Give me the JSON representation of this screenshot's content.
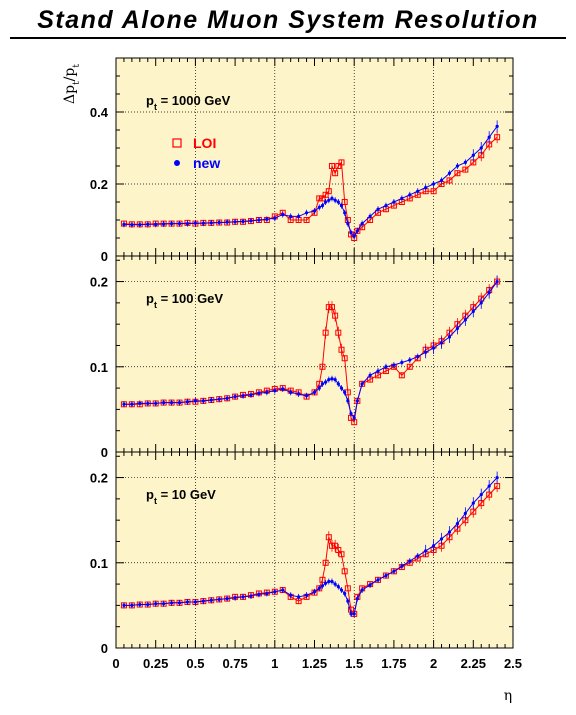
{
  "chart_data": {
    "type": "scatter",
    "title": "Stand Alone Muon System Resolution",
    "xlabel": "η",
    "ylabel": "Δp_t/p_t",
    "xlim": [
      0,
      2.5
    ],
    "x_ticks": [
      "0",
      "0.25",
      "0.5",
      "0.75",
      "1",
      "1.25",
      "1.5",
      "1.75",
      "2",
      "2.25",
      "2.5"
    ],
    "x_tick_values": [
      0,
      0.25,
      0.5,
      0.75,
      1,
      1.25,
      1.5,
      1.75,
      2,
      2.25,
      2.5
    ],
    "background": "#fdf5c9",
    "grid": "dotted",
    "legend": {
      "placement": "top-left (top panel)",
      "entries": [
        {
          "label": "LOI",
          "color": "#ff0000",
          "marker": "open-square"
        },
        {
          "label": "new",
          "color": "#0000ff",
          "marker": "filled-circle"
        }
      ]
    },
    "panels": [
      {
        "label_parts": [
          "p",
          "t",
          " = 1000 GeV"
        ],
        "ylim": [
          0,
          0.55
        ],
        "y_ticks": [
          "0",
          "0.2",
          "0.4"
        ],
        "y_tick_values": [
          0,
          0.2,
          0.4
        ],
        "series": [
          {
            "name": "LOI",
            "x": [
              0.05,
              0.1,
              0.15,
              0.2,
              0.25,
              0.3,
              0.35,
              0.4,
              0.45,
              0.5,
              0.55,
              0.6,
              0.65,
              0.7,
              0.75,
              0.8,
              0.85,
              0.9,
              0.95,
              1.0,
              1.05,
              1.1,
              1.15,
              1.2,
              1.25,
              1.28,
              1.3,
              1.32,
              1.34,
              1.36,
              1.38,
              1.4,
              1.42,
              1.44,
              1.46,
              1.48,
              1.5,
              1.52,
              1.55,
              1.6,
              1.65,
              1.7,
              1.75,
              1.8,
              1.85,
              1.9,
              1.95,
              2.0,
              2.05,
              2.1,
              2.15,
              2.2,
              2.25,
              2.3,
              2.35,
              2.4
            ],
            "y": [
              0.09,
              0.088,
              0.088,
              0.088,
              0.09,
              0.09,
              0.09,
              0.09,
              0.092,
              0.09,
              0.092,
              0.092,
              0.093,
              0.093,
              0.095,
              0.095,
              0.097,
              0.1,
              0.1,
              0.11,
              0.12,
              0.1,
              0.1,
              0.1,
              0.12,
              0.16,
              0.16,
              0.17,
              0.18,
              0.25,
              0.23,
              0.25,
              0.26,
              0.15,
              0.1,
              0.06,
              0.05,
              0.07,
              0.08,
              0.1,
              0.12,
              0.13,
              0.14,
              0.15,
              0.16,
              0.17,
              0.18,
              0.18,
              0.2,
              0.21,
              0.23,
              0.24,
              0.26,
              0.28,
              0.31,
              0.33
            ]
          },
          {
            "name": "new",
            "x": [
              0.05,
              0.1,
              0.15,
              0.2,
              0.25,
              0.3,
              0.35,
              0.4,
              0.45,
              0.5,
              0.55,
              0.6,
              0.65,
              0.7,
              0.75,
              0.8,
              0.85,
              0.9,
              0.95,
              1.0,
              1.05,
              1.1,
              1.15,
              1.2,
              1.25,
              1.28,
              1.3,
              1.32,
              1.34,
              1.36,
              1.38,
              1.4,
              1.42,
              1.44,
              1.46,
              1.48,
              1.5,
              1.52,
              1.55,
              1.6,
              1.65,
              1.7,
              1.75,
              1.8,
              1.85,
              1.9,
              1.95,
              2.0,
              2.05,
              2.1,
              2.15,
              2.2,
              2.25,
              2.3,
              2.35,
              2.4
            ],
            "y": [
              0.088,
              0.087,
              0.087,
              0.088,
              0.088,
              0.089,
              0.09,
              0.09,
              0.09,
              0.091,
              0.091,
              0.092,
              0.093,
              0.094,
              0.095,
              0.096,
              0.098,
              0.1,
              0.102,
              0.105,
              0.115,
              0.11,
              0.11,
              0.12,
              0.125,
              0.135,
              0.14,
              0.15,
              0.155,
              0.16,
              0.155,
              0.15,
              0.14,
              0.12,
              0.09,
              0.065,
              0.055,
              0.07,
              0.09,
              0.11,
              0.13,
              0.14,
              0.15,
              0.16,
              0.17,
              0.18,
              0.19,
              0.2,
              0.21,
              0.23,
              0.25,
              0.26,
              0.28,
              0.3,
              0.33,
              0.36
            ]
          }
        ]
      },
      {
        "label_parts": [
          "p",
          "t",
          " = 100 GeV"
        ],
        "ylim": [
          0,
          0.23
        ],
        "y_ticks": [
          "0",
          "0.1",
          "0.2"
        ],
        "y_tick_values": [
          0,
          0.1,
          0.2
        ],
        "series": [
          {
            "name": "LOI",
            "x": [
              0.05,
              0.1,
              0.15,
              0.2,
              0.25,
              0.3,
              0.35,
              0.4,
              0.45,
              0.5,
              0.55,
              0.6,
              0.65,
              0.7,
              0.75,
              0.8,
              0.85,
              0.9,
              0.95,
              1.0,
              1.05,
              1.1,
              1.15,
              1.2,
              1.25,
              1.28,
              1.3,
              1.32,
              1.34,
              1.36,
              1.38,
              1.4,
              1.42,
              1.44,
              1.46,
              1.48,
              1.5,
              1.52,
              1.55,
              1.6,
              1.65,
              1.7,
              1.75,
              1.8,
              1.85,
              1.9,
              1.95,
              2.0,
              2.05,
              2.1,
              2.15,
              2.2,
              2.25,
              2.3,
              2.35,
              2.4
            ],
            "y": [
              0.056,
              0.056,
              0.056,
              0.057,
              0.057,
              0.058,
              0.058,
              0.058,
              0.059,
              0.059,
              0.06,
              0.061,
              0.062,
              0.063,
              0.065,
              0.067,
              0.068,
              0.07,
              0.072,
              0.074,
              0.075,
              0.072,
              0.07,
              0.065,
              0.07,
              0.08,
              0.1,
              0.14,
              0.17,
              0.17,
              0.16,
              0.14,
              0.12,
              0.11,
              0.07,
              0.04,
              0.035,
              0.06,
              0.08,
              0.085,
              0.09,
              0.095,
              0.1,
              0.09,
              0.1,
              0.11,
              0.12,
              0.125,
              0.13,
              0.14,
              0.15,
              0.16,
              0.17,
              0.18,
              0.19,
              0.2
            ]
          },
          {
            "name": "new",
            "x": [
              0.05,
              0.1,
              0.15,
              0.2,
              0.25,
              0.3,
              0.35,
              0.4,
              0.45,
              0.5,
              0.55,
              0.6,
              0.65,
              0.7,
              0.75,
              0.8,
              0.85,
              0.9,
              0.95,
              1.0,
              1.05,
              1.1,
              1.15,
              1.2,
              1.25,
              1.28,
              1.3,
              1.32,
              1.34,
              1.36,
              1.38,
              1.4,
              1.42,
              1.44,
              1.46,
              1.48,
              1.5,
              1.52,
              1.55,
              1.6,
              1.65,
              1.7,
              1.75,
              1.8,
              1.85,
              1.9,
              1.95,
              2.0,
              2.05,
              2.1,
              2.15,
              2.2,
              2.25,
              2.3,
              2.35,
              2.4
            ],
            "y": [
              0.056,
              0.056,
              0.057,
              0.057,
              0.057,
              0.058,
              0.058,
              0.058,
              0.059,
              0.06,
              0.06,
              0.061,
              0.062,
              0.063,
              0.065,
              0.066,
              0.067,
              0.069,
              0.07,
              0.072,
              0.074,
              0.07,
              0.068,
              0.066,
              0.07,
              0.075,
              0.08,
              0.082,
              0.085,
              0.086,
              0.085,
              0.08,
              0.075,
              0.07,
              0.06,
              0.045,
              0.04,
              0.06,
              0.08,
              0.09,
              0.095,
              0.1,
              0.102,
              0.105,
              0.108,
              0.112,
              0.117,
              0.122,
              0.128,
              0.135,
              0.145,
              0.155,
              0.165,
              0.175,
              0.187,
              0.2
            ]
          }
        ]
      },
      {
        "label_parts": [
          "p",
          "t",
          " = 10 GeV"
        ],
        "ylim": [
          0,
          0.23
        ],
        "y_ticks": [
          "0",
          "0.1",
          "0.2"
        ],
        "y_tick_values": [
          0,
          0.1,
          0.2
        ],
        "series": [
          {
            "name": "LOI",
            "x": [
              0.05,
              0.1,
              0.15,
              0.2,
              0.25,
              0.3,
              0.35,
              0.4,
              0.45,
              0.5,
              0.55,
              0.6,
              0.65,
              0.7,
              0.75,
              0.8,
              0.85,
              0.9,
              0.95,
              1.0,
              1.05,
              1.1,
              1.15,
              1.2,
              1.25,
              1.28,
              1.3,
              1.32,
              1.34,
              1.36,
              1.38,
              1.4,
              1.42,
              1.44,
              1.46,
              1.48,
              1.5,
              1.52,
              1.55,
              1.6,
              1.65,
              1.7,
              1.75,
              1.8,
              1.85,
              1.9,
              1.95,
              2.0,
              2.05,
              2.1,
              2.15,
              2.2,
              2.25,
              2.3,
              2.35,
              2.4
            ],
            "y": [
              0.05,
              0.05,
              0.051,
              0.051,
              0.052,
              0.052,
              0.053,
              0.053,
              0.054,
              0.054,
              0.055,
              0.056,
              0.057,
              0.058,
              0.06,
              0.06,
              0.062,
              0.064,
              0.065,
              0.066,
              0.068,
              0.06,
              0.055,
              0.06,
              0.065,
              0.07,
              0.08,
              0.1,
              0.13,
              0.12,
              0.12,
              0.115,
              0.11,
              0.09,
              0.07,
              0.045,
              0.04,
              0.06,
              0.07,
              0.075,
              0.08,
              0.085,
              0.09,
              0.095,
              0.1,
              0.105,
              0.11,
              0.115,
              0.12,
              0.13,
              0.14,
              0.15,
              0.16,
              0.17,
              0.18,
              0.19
            ]
          },
          {
            "name": "new",
            "x": [
              0.05,
              0.1,
              0.15,
              0.2,
              0.25,
              0.3,
              0.35,
              0.4,
              0.45,
              0.5,
              0.55,
              0.6,
              0.65,
              0.7,
              0.75,
              0.8,
              0.85,
              0.9,
              0.95,
              1.0,
              1.05,
              1.1,
              1.15,
              1.2,
              1.25,
              1.28,
              1.3,
              1.32,
              1.34,
              1.36,
              1.38,
              1.4,
              1.42,
              1.44,
              1.46,
              1.48,
              1.5,
              1.52,
              1.55,
              1.6,
              1.65,
              1.7,
              1.75,
              1.8,
              1.85,
              1.9,
              1.95,
              2.0,
              2.05,
              2.1,
              2.15,
              2.2,
              2.25,
              2.3,
              2.35,
              2.4
            ],
            "y": [
              0.05,
              0.05,
              0.051,
              0.051,
              0.052,
              0.052,
              0.053,
              0.053,
              0.054,
              0.054,
              0.055,
              0.056,
              0.057,
              0.058,
              0.059,
              0.06,
              0.061,
              0.063,
              0.064,
              0.066,
              0.068,
              0.062,
              0.06,
              0.062,
              0.066,
              0.07,
              0.073,
              0.076,
              0.078,
              0.078,
              0.075,
              0.072,
              0.068,
              0.064,
              0.055,
              0.04,
              0.04,
              0.058,
              0.068,
              0.074,
              0.08,
              0.085,
              0.09,
              0.096,
              0.102,
              0.108,
              0.114,
              0.12,
              0.128,
              0.136,
              0.146,
              0.158,
              0.17,
              0.18,
              0.19,
              0.2
            ]
          }
        ]
      }
    ]
  }
}
